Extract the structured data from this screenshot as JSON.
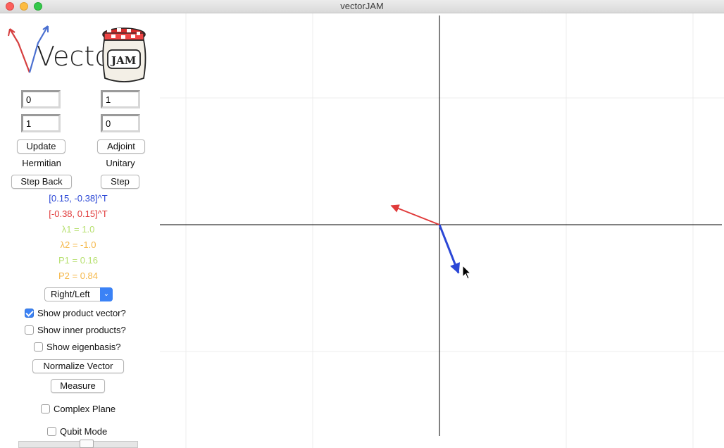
{
  "window": {
    "title": "vectorJAM"
  },
  "logo": {
    "text": "Vector",
    "jar_label": "JAM"
  },
  "matrix": {
    "a11": "0",
    "a12": "1",
    "a21": "1",
    "a22": "0"
  },
  "buttons": {
    "update": "Update",
    "adjoint": "Adjoint",
    "step_back": "Step Back",
    "step": "Step",
    "normalize": "Normalize Vector",
    "measure": "Measure"
  },
  "labels": {
    "hermitian": "Hermitian",
    "unitary": "Unitary"
  },
  "info": {
    "vector": "[0.15, -0.38]^T",
    "product": "[-0.38, 0.15]^T",
    "lambda1": "λ1 = 1.0",
    "lambda2": "λ2 = -1.0",
    "p1": "P1 = 0.16",
    "p2": "P2 = 0.84"
  },
  "dropdown": {
    "selected": "Right/Left"
  },
  "checkboxes": {
    "show_product": {
      "label": "Show product vector?",
      "checked": true
    },
    "show_inner": {
      "label": "Show inner products?",
      "checked": false
    },
    "show_eigen": {
      "label": "Show eigenbasis?",
      "checked": false
    },
    "complex_plane": {
      "label": "Complex Plane",
      "checked": false
    },
    "qubit_mode": {
      "label": "Qubit Mode",
      "checked": false
    }
  },
  "colors": {
    "vector_blue": "#2b47d6",
    "product_red": "#e03a3a",
    "lambda1_green": "#b7e070",
    "lambda2_orange": "#f5b84a",
    "check_blue": "#3b82f6"
  },
  "plot": {
    "vector": [
      0.15,
      -0.38
    ],
    "product_vector": [
      -0.38,
      0.15
    ]
  },
  "slider": {
    "value": 0.55
  }
}
